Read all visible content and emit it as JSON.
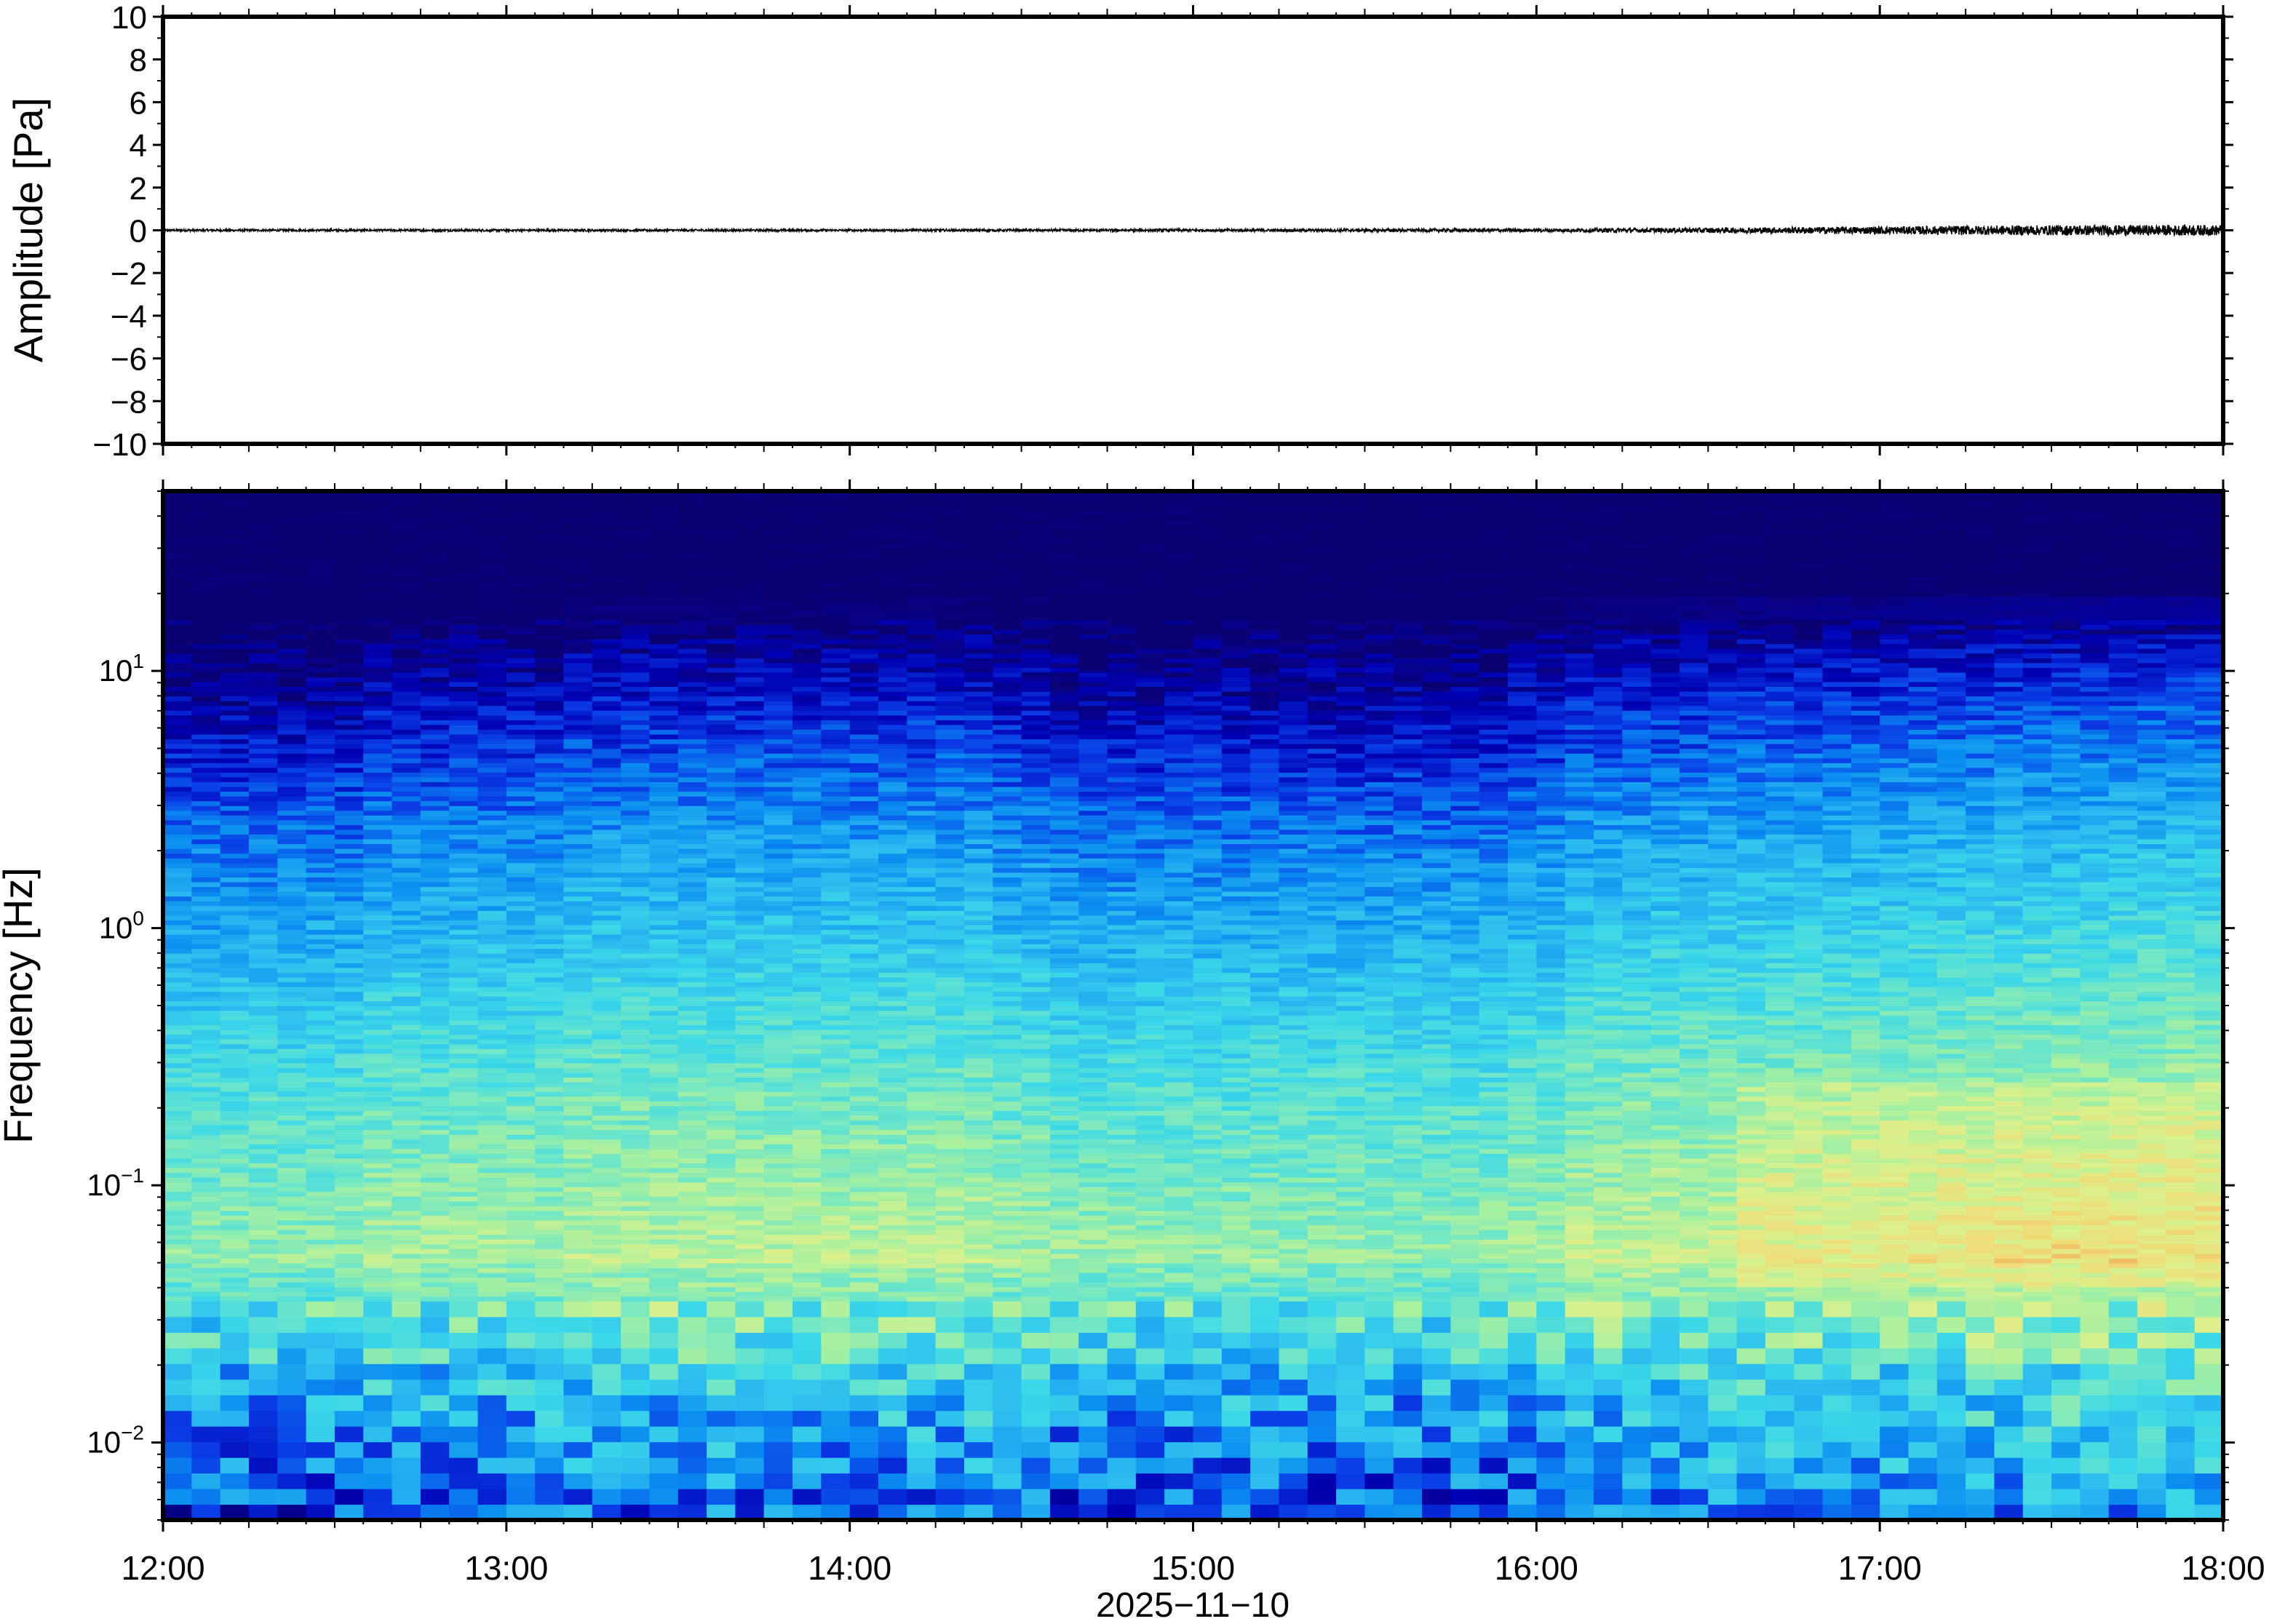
{
  "chart_data": [
    {
      "type": "line",
      "ylabel": "Amplitude [Pa]",
      "ylim": [
        -10,
        10
      ],
      "yticks": [
        10,
        8,
        6,
        4,
        2,
        0,
        -2,
        -4,
        -6,
        -8,
        -10
      ],
      "ytick_labels": [
        "10",
        "8",
        "6",
        "4",
        "2",
        "0",
        "−2",
        "−4",
        "−6",
        "−8",
        "−10"
      ],
      "xlim": [
        "12:00",
        "18:00"
      ],
      "series": [
        {
          "x": [
            "12:00",
            "13:00",
            "14:00",
            "15:00",
            "16:00",
            "16:30",
            "17:00",
            "17:30",
            "18:00"
          ],
          "y": [
            0,
            0,
            0,
            0,
            0,
            0,
            0,
            0,
            0
          ],
          "envelope": [
            0.05,
            0.05,
            0.05,
            0.06,
            0.08,
            0.12,
            0.18,
            0.24,
            0.25
          ]
        }
      ],
      "color": "#000000",
      "grid": false
    },
    {
      "type": "heatmap",
      "ylabel": "Frequency [Hz]",
      "yscale": "log",
      "ylim": [
        0.005,
        50
      ],
      "yticks": [
        0.01,
        0.1,
        1,
        10
      ],
      "ytick_labels": [
        {
          "base": "10",
          "exp": "−2"
        },
        {
          "base": "10",
          "exp": "−1"
        },
        {
          "base": "10",
          "exp": "0"
        },
        {
          "base": "10",
          "exp": "1"
        }
      ],
      "xlabel": "2025−11−10",
      "xlim": [
        "12:00",
        "18:00"
      ],
      "xticks": [
        "12:00",
        "13:00",
        "14:00",
        "15:00",
        "16:00",
        "17:00",
        "18:00"
      ],
      "colormap": [
        "#0a0070",
        "#0000b4",
        "#0a3ce6",
        "#0a8cf0",
        "#2ab8f0",
        "#3cd8e8",
        "#6ee6c8",
        "#a8f0a0",
        "#dcf08c",
        "#f0dc78",
        "#f0a050"
      ],
      "grid": false
    }
  ]
}
